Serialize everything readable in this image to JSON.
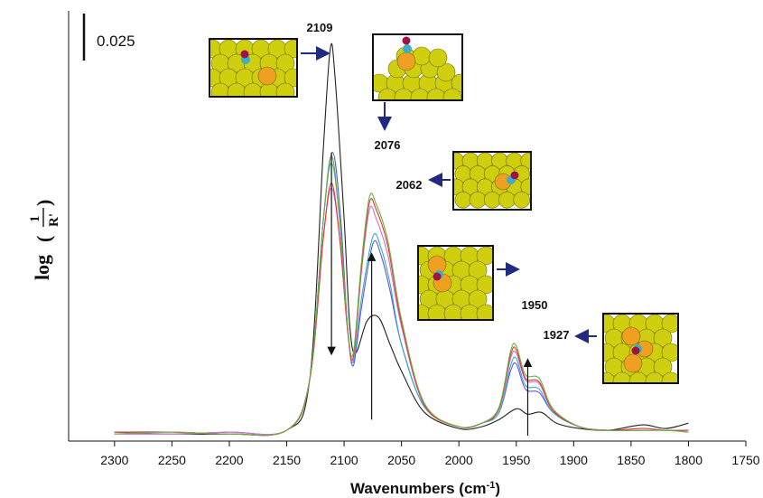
{
  "chart_data": {
    "type": "line",
    "title": "",
    "xlabel": "Wavenumbers (cm-1)",
    "ylabel": "log(1/R')",
    "x_reversed": true,
    "xlim": [
      2340,
      1750
    ],
    "ylim": [
      -0.004,
      0.236
    ],
    "x_ticks": [
      2300,
      2250,
      2200,
      2150,
      2100,
      2050,
      2000,
      1950,
      1900,
      1850,
      1800,
      1750
    ],
    "grid": false,
    "legend": "none",
    "scale_bar": {
      "label": "0.025",
      "value": 0.025
    },
    "peak_labels": [
      "2109",
      "2076",
      "2062",
      "1950",
      "1927"
    ],
    "peak_positions": [
      2109,
      2076,
      2062,
      1950,
      1927
    ],
    "arrows": [
      {
        "x": 2111,
        "from": 0.157,
        "to": 0.045,
        "direction": "down"
      },
      {
        "x": 2076,
        "from": 0.008,
        "to": 0.1,
        "direction": "up"
      },
      {
        "x": 1940,
        "from": -0.001,
        "to": 0.041,
        "direction": "up"
      }
    ],
    "series": [
      {
        "color": "#222222",
        "points": [
          [
            2300,
            0.0
          ],
          [
            2250,
            0.0
          ],
          [
            2200,
            0.0
          ],
          [
            2150,
            0.002
          ],
          [
            2130,
            0.03
          ],
          [
            2118,
            0.16
          ],
          [
            2112,
            0.215
          ],
          [
            2108,
            0.2
          ],
          [
            2100,
            0.12
          ],
          [
            2095,
            0.06
          ],
          [
            2090,
            0.045
          ],
          [
            2080,
            0.063
          ],
          [
            2070,
            0.065
          ],
          [
            2060,
            0.05
          ],
          [
            2050,
            0.035
          ],
          [
            2030,
            0.012
          ],
          [
            2000,
            0.003
          ],
          [
            1980,
            0.004
          ],
          [
            1965,
            0.008
          ],
          [
            1950,
            0.014
          ],
          [
            1940,
            0.011
          ],
          [
            1928,
            0.012
          ],
          [
            1915,
            0.006
          ],
          [
            1895,
            0.003
          ],
          [
            1870,
            0.002
          ],
          [
            1840,
            0.005
          ],
          [
            1820,
            0.003
          ],
          [
            1800,
            0.006
          ]
        ]
      },
      {
        "color": "#5a5ae0",
        "points": [
          [
            2300,
            0.001
          ],
          [
            2250,
            0.0
          ],
          [
            2200,
            0.001
          ],
          [
            2150,
            0.002
          ],
          [
            2130,
            0.03
          ],
          [
            2118,
            0.12
          ],
          [
            2110,
            0.157
          ],
          [
            2103,
            0.12
          ],
          [
            2097,
            0.06
          ],
          [
            2092,
            0.038
          ],
          [
            2085,
            0.07
          ],
          [
            2075,
            0.106
          ],
          [
            2068,
            0.1
          ],
          [
            2060,
            0.08
          ],
          [
            2050,
            0.05
          ],
          [
            2030,
            0.015
          ],
          [
            2000,
            0.004
          ],
          [
            1980,
            0.006
          ],
          [
            1965,
            0.012
          ],
          [
            1955,
            0.035
          ],
          [
            1950,
            0.039
          ],
          [
            1942,
            0.025
          ],
          [
            1930,
            0.023
          ],
          [
            1918,
            0.012
          ],
          [
            1895,
            0.004
          ],
          [
            1870,
            0.002
          ],
          [
            1840,
            0.002
          ],
          [
            1820,
            0.002
          ],
          [
            1800,
            0.002
          ]
        ]
      },
      {
        "color": "#3aa7c8",
        "points": [
          [
            2300,
            0.001
          ],
          [
            2250,
            0.001
          ],
          [
            2200,
            0.0
          ],
          [
            2150,
            0.002
          ],
          [
            2130,
            0.03
          ],
          [
            2118,
            0.12
          ],
          [
            2111,
            0.151
          ],
          [
            2104,
            0.12
          ],
          [
            2097,
            0.06
          ],
          [
            2092,
            0.04
          ],
          [
            2085,
            0.075
          ],
          [
            2075,
            0.11
          ],
          [
            2068,
            0.104
          ],
          [
            2060,
            0.084
          ],
          [
            2050,
            0.05
          ],
          [
            2030,
            0.015
          ],
          [
            2000,
            0.004
          ],
          [
            1980,
            0.006
          ],
          [
            1965,
            0.012
          ],
          [
            1955,
            0.038
          ],
          [
            1950,
            0.042
          ],
          [
            1942,
            0.027
          ],
          [
            1930,
            0.025
          ],
          [
            1918,
            0.012
          ],
          [
            1895,
            0.004
          ],
          [
            1870,
            0.002
          ],
          [
            1840,
            0.002
          ],
          [
            1820,
            0.002
          ],
          [
            1800,
            0.001
          ]
        ]
      },
      {
        "color": "#cf6fcf",
        "points": [
          [
            2300,
            0.0
          ],
          [
            2250,
            0.0
          ],
          [
            2200,
            0.001
          ],
          [
            2150,
            0.002
          ],
          [
            2130,
            0.03
          ],
          [
            2118,
            0.11
          ],
          [
            2111,
            0.137
          ],
          [
            2104,
            0.11
          ],
          [
            2097,
            0.058
          ],
          [
            2092,
            0.042
          ],
          [
            2085,
            0.09
          ],
          [
            2078,
            0.125
          ],
          [
            2072,
            0.12
          ],
          [
            2062,
            0.1
          ],
          [
            2050,
            0.06
          ],
          [
            2030,
            0.016
          ],
          [
            2000,
            0.004
          ],
          [
            1980,
            0.006
          ],
          [
            1965,
            0.014
          ],
          [
            1955,
            0.042
          ],
          [
            1950,
            0.045
          ],
          [
            1942,
            0.03
          ],
          [
            1930,
            0.028
          ],
          [
            1918,
            0.013
          ],
          [
            1895,
            0.004
          ],
          [
            1870,
            0.002
          ],
          [
            1840,
            0.002
          ],
          [
            1820,
            0.002
          ],
          [
            1800,
            0.002
          ]
        ]
      },
      {
        "color": "#e03838",
        "points": [
          [
            2300,
            0.001
          ],
          [
            2250,
            0.001
          ],
          [
            2200,
            0.0
          ],
          [
            2150,
            0.002
          ],
          [
            2130,
            0.03
          ],
          [
            2118,
            0.11
          ],
          [
            2111,
            0.14
          ],
          [
            2104,
            0.11
          ],
          [
            2097,
            0.058
          ],
          [
            2092,
            0.043
          ],
          [
            2085,
            0.092
          ],
          [
            2078,
            0.129
          ],
          [
            2072,
            0.125
          ],
          [
            2062,
            0.105
          ],
          [
            2050,
            0.062
          ],
          [
            2030,
            0.016
          ],
          [
            2000,
            0.004
          ],
          [
            1980,
            0.006
          ],
          [
            1965,
            0.014
          ],
          [
            1955,
            0.044
          ],
          [
            1950,
            0.047
          ],
          [
            1942,
            0.031
          ],
          [
            1930,
            0.029
          ],
          [
            1918,
            0.013
          ],
          [
            1895,
            0.004
          ],
          [
            1870,
            0.002
          ],
          [
            1840,
            0.003
          ],
          [
            1820,
            0.002
          ],
          [
            1800,
            0.002
          ]
        ]
      },
      {
        "color": "#6ab03a",
        "points": [
          [
            2300,
            0.0
          ],
          [
            2250,
            0.001
          ],
          [
            2200,
            0.0
          ],
          [
            2150,
            0.002
          ],
          [
            2130,
            0.03
          ],
          [
            2118,
            0.12
          ],
          [
            2111,
            0.155
          ],
          [
            2104,
            0.12
          ],
          [
            2097,
            0.06
          ],
          [
            2092,
            0.045
          ],
          [
            2085,
            0.095
          ],
          [
            2078,
            0.132
          ],
          [
            2072,
            0.128
          ],
          [
            2062,
            0.108
          ],
          [
            2050,
            0.064
          ],
          [
            2030,
            0.017
          ],
          [
            2000,
            0.004
          ],
          [
            1980,
            0.006
          ],
          [
            1965,
            0.015
          ],
          [
            1955,
            0.046
          ],
          [
            1950,
            0.049
          ],
          [
            1942,
            0.033
          ],
          [
            1930,
            0.031
          ],
          [
            1918,
            0.014
          ],
          [
            1895,
            0.004
          ],
          [
            1870,
            0.002
          ],
          [
            1840,
            0.002
          ],
          [
            1820,
            0.002
          ],
          [
            1800,
            0.001
          ]
        ]
      }
    ]
  },
  "colors": {
    "metal_atom": "#cfcf10",
    "metal_atom_highlight": "#f0a020",
    "carbon": "#3ab0c8",
    "oxygen": "#a0104a",
    "pointer_arrow": "#1f2a80"
  }
}
